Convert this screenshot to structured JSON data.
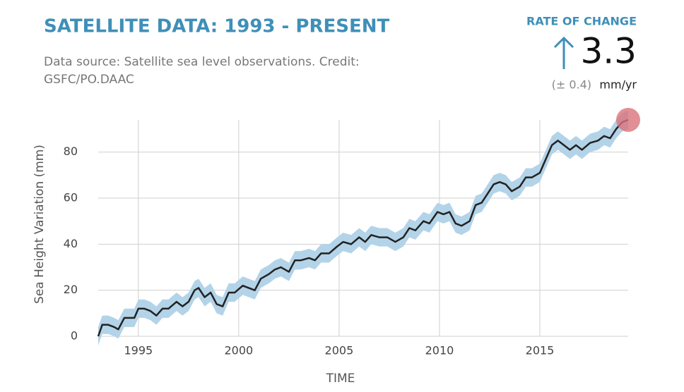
{
  "chart_data": {
    "type": "line",
    "title": "SATELLITE DATA: 1993 - PRESENT",
    "subtitle_lines": [
      "Data source: Satellite sea level observations. Credit:",
      "GSFC/PO.DAAC"
    ],
    "rate": {
      "label": "RATE OF CHANGE",
      "value": "3.3",
      "uncertainty": "(± 0.4)",
      "unit": "mm/yr"
    },
    "ylabel": "Sea Height Variation (mm)",
    "xlabel": "TIME",
    "xlim": [
      1993,
      2019.4
    ],
    "ylim": [
      0,
      94
    ],
    "xticks": [
      1995,
      2000,
      2005,
      2010,
      2015
    ],
    "yticks": [
      0,
      20,
      40,
      60,
      80
    ],
    "grid": true,
    "x": [
      1993.0,
      1993.2,
      1993.5,
      1993.8,
      1994.0,
      1994.3,
      1994.5,
      1994.8,
      1995.0,
      1995.3,
      1995.6,
      1995.9,
      1996.2,
      1996.5,
      1996.9,
      1997.2,
      1997.5,
      1997.8,
      1998.0,
      1998.3,
      1998.6,
      1998.9,
      1999.2,
      1999.5,
      1999.8,
      2000.2,
      2000.5,
      2000.8,
      2001.1,
      2001.5,
      2001.8,
      2002.1,
      2002.5,
      2002.8,
      2003.1,
      2003.5,
      2003.8,
      2004.1,
      2004.5,
      2004.9,
      2005.2,
      2005.6,
      2006.0,
      2006.3,
      2006.6,
      2007.0,
      2007.4,
      2007.8,
      2008.2,
      2008.5,
      2008.8,
      2009.2,
      2009.5,
      2009.9,
      2010.2,
      2010.5,
      2010.8,
      2011.1,
      2011.5,
      2011.8,
      2012.1,
      2012.4,
      2012.7,
      2013.0,
      2013.3,
      2013.6,
      2014.0,
      2014.3,
      2014.6,
      2015.0,
      2015.3,
      2015.6,
      2015.9,
      2016.2,
      2016.5,
      2016.8,
      2017.1,
      2017.5,
      2017.9,
      2018.2,
      2018.5,
      2018.8,
      2019.1,
      2019.4
    ],
    "series": [
      {
        "color": "#222222",
        "band_color": "#b3d3e8",
        "values": [
          0,
          5,
          5,
          4,
          3,
          8,
          8,
          8,
          12,
          12,
          11,
          9,
          12,
          12,
          15,
          13,
          15,
          20,
          21,
          17,
          19,
          14,
          13,
          19,
          19,
          22,
          21,
          20,
          25,
          27,
          29,
          30,
          28,
          33,
          33,
          34,
          33,
          36,
          36,
          39,
          41,
          40,
          43,
          41,
          44,
          43,
          43,
          41,
          43,
          47,
          46,
          50,
          49,
          54,
          53,
          54,
          49,
          48,
          50,
          57,
          58,
          62,
          66,
          67,
          66,
          63,
          65,
          69,
          69,
          71,
          77,
          83,
          85,
          83,
          81,
          83,
          81,
          84,
          85,
          87,
          86,
          90,
          93,
          94
        ]
      }
    ],
    "error": 4,
    "highlight_color": "#d9737a"
  }
}
